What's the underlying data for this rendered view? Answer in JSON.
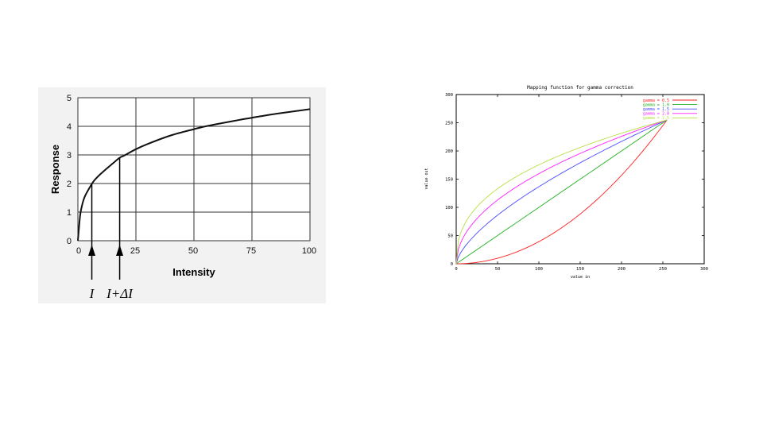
{
  "chart_data": [
    {
      "type": "line",
      "xlabel": "Intensity",
      "ylabel": "Response",
      "xlim": [
        0,
        100
      ],
      "ylim": [
        0,
        5
      ],
      "xticks": [
        "0",
        "25",
        "50",
        "75",
        "100"
      ],
      "yticks": [
        "0",
        "1",
        "2",
        "3",
        "4",
        "5"
      ],
      "grid": true,
      "background": "#f2f2f2",
      "x": [
        0,
        1,
        2,
        3,
        5,
        7,
        10,
        15,
        18,
        20,
        25,
        30,
        40,
        50,
        55,
        60,
        70,
        80,
        90,
        100
      ],
      "values": [
        0,
        0.9,
        1.3,
        1.55,
        1.85,
        2.1,
        2.35,
        2.7,
        2.9,
        2.98,
        3.2,
        3.38,
        3.68,
        3.9,
        4.0,
        4.08,
        4.23,
        4.37,
        4.49,
        4.6
      ],
      "annotations": [
        {
          "label": "I",
          "x": 6
        },
        {
          "label": "I+ΔI",
          "x": 18
        }
      ]
    },
    {
      "type": "line",
      "title": "Mapping function for gamma correction",
      "xlabel": "value in",
      "ylabel": "value out",
      "xlim": [
        0,
        300
      ],
      "ylim": [
        0,
        300
      ],
      "xticks": [
        "0",
        "50",
        "100",
        "150",
        "200",
        "250",
        "300"
      ],
      "yticks": [
        "0",
        "50",
        "100",
        "150",
        "200",
        "250",
        "300"
      ],
      "grid": false,
      "legend": "top-right",
      "series": [
        {
          "name": "gamma = 0.5",
          "gamma": 0.5,
          "color": "#ff2020"
        },
        {
          "name": "gamma = 1.0",
          "gamma": 1.0,
          "color": "#20b020"
        },
        {
          "name": "gamma = 1.5",
          "gamma": 1.5,
          "color": "#4a4aff"
        },
        {
          "name": "gamma = 2.0",
          "gamma": 2.0,
          "color": "#ff20ff"
        },
        {
          "name": "gamma = 2.5",
          "gamma": 2.5,
          "color": "#b8e040"
        }
      ]
    }
  ]
}
